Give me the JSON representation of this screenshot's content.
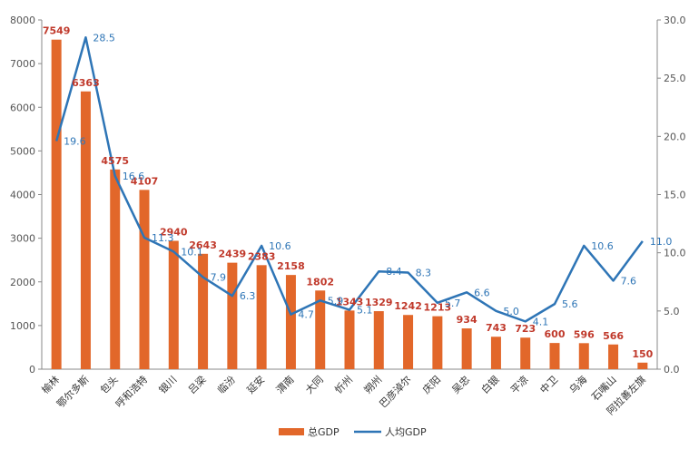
{
  "chart_data": {
    "type": "bar",
    "categories": [
      "榆林",
      "鄂尔多斯",
      "包头",
      "呼和浩特",
      "银川",
      "吕梁",
      "临汾",
      "延安",
      "渭南",
      "大同",
      "忻州",
      "朔州",
      "巴彦淖尔",
      "庆阳",
      "吴忠",
      "白银",
      "平凉",
      "中卫",
      "乌海",
      "石嘴山",
      "阿拉善左旗"
    ],
    "series": [
      {
        "name": "总GDP",
        "type": "bar",
        "axis": "left",
        "color": "#e2672a",
        "values": [
          7549,
          6363,
          4575,
          4107,
          2940,
          2643,
          2439,
          2383,
          2158,
          1802,
          1343,
          1329,
          1242,
          1213,
          934,
          743,
          723,
          600,
          596,
          566,
          150
        ]
      },
      {
        "name": "人均GDP",
        "type": "line",
        "axis": "right",
        "color": "#2e75b6",
        "values": [
          19.6,
          28.5,
          16.6,
          11.3,
          10.1,
          7.9,
          6.3,
          10.6,
          4.7,
          5.9,
          5.1,
          8.4,
          8.3,
          5.7,
          6.6,
          5.0,
          4.1,
          5.6,
          10.6,
          7.6,
          11.0
        ]
      }
    ],
    "ylim_left": [
      0,
      8000
    ],
    "ylim_right": [
      0,
      30
    ],
    "yticks_left": [
      "0",
      "1000",
      "2000",
      "3000",
      "4000",
      "5000",
      "6000",
      "7000",
      "8000"
    ],
    "yticks_right": [
      "0.0",
      "5.0",
      "10.0",
      "15.0",
      "20.0",
      "25.0",
      "30.0"
    ],
    "legend_position": "bottom",
    "grid": false
  }
}
